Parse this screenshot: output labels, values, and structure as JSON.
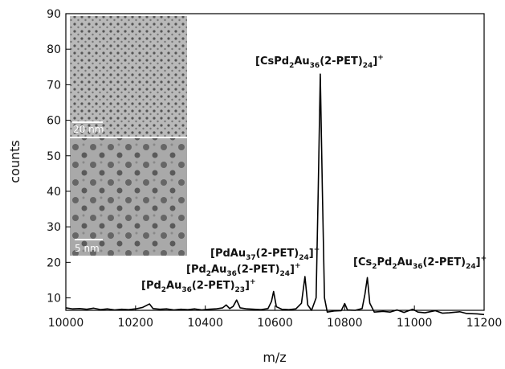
{
  "chart_data": {
    "type": "line",
    "x_label": "m/z",
    "y_label": "counts",
    "xlim": [
      10000,
      11200
    ],
    "xticks": [
      10000,
      10200,
      10400,
      10600,
      10800,
      11000,
      11200
    ],
    "ylim": [
      6.5,
      90
    ],
    "yticks": [
      10,
      20,
      30,
      40,
      50,
      60,
      70,
      80,
      90
    ],
    "series": [
      {
        "color": "#000000",
        "x": [
          10000,
          10020,
          10040,
          10060,
          10080,
          10100,
          10120,
          10140,
          10160,
          10180,
          10200,
          10220,
          10240,
          10250,
          10270,
          10290,
          10310,
          10330,
          10350,
          10370,
          10390,
          10410,
          10430,
          10450,
          10460,
          10470,
          10480,
          10490,
          10500,
          10520,
          10540,
          10560,
          10580,
          10590,
          10596,
          10604,
          10620,
          10640,
          10660,
          10676,
          10686,
          10694,
          10705,
          10718,
          10724,
          10730,
          10736,
          10742,
          10750,
          10770,
          10790,
          10800,
          10808,
          10830,
          10850,
          10858,
          10865,
          10872,
          10885,
          10910,
          10930,
          10950,
          10970,
          10995,
          11010,
          11030,
          11060,
          11080,
          11100,
          11130,
          11150,
          11180,
          11200
        ],
        "values": [
          7.2,
          6.9,
          7.0,
          6.8,
          7.1,
          6.7,
          6.9,
          6.6,
          6.8,
          6.7,
          6.9,
          7.3,
          8.3,
          7.0,
          6.8,
          6.9,
          6.6,
          6.8,
          6.7,
          6.9,
          6.6,
          6.8,
          6.9,
          7.2,
          8.0,
          7.0,
          7.6,
          9.4,
          7.2,
          6.9,
          6.8,
          6.7,
          7.0,
          9.0,
          11.8,
          7.5,
          6.8,
          6.7,
          6.9,
          8.5,
          16.0,
          8.0,
          6.5,
          10,
          40,
          73.0,
          40,
          10,
          6.0,
          6.3,
          6.4,
          8.4,
          6.6,
          6.5,
          7.0,
          11,
          15.7,
          8.5,
          6.0,
          6.2,
          6.0,
          6.6,
          5.9,
          6.8,
          6.0,
          5.8,
          6.4,
          5.7,
          5.8,
          6.1,
          5.6,
          5.5,
          5.3
        ]
      }
    ],
    "annotations": [
      "[Pd2Au36(2-PET)23]+",
      "[Pd2Au36(2-PET)24]+",
      "[PdAu37(2-PET)24]+",
      "[CsPd2Au36(2-PET)24]+",
      "[Cs2Pd2Au36(2-PET)24]+"
    ],
    "inset_labels": [
      "20 nm",
      "5 nm"
    ]
  }
}
